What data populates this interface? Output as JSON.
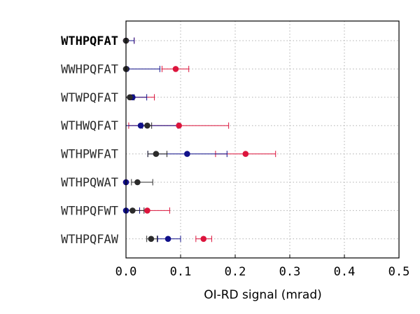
{
  "chart_data": {
    "type": "scatter",
    "xlabel": "OI-RD signal (mrad)",
    "xlim": [
      0.0,
      0.5
    ],
    "xticks": [
      "0.0",
      "0.1",
      "0.2",
      "0.3",
      "0.4",
      "0.5"
    ],
    "grid": true,
    "highlight_category": "WTHPQFAT",
    "categories": [
      "WTHPQFAT",
      "WWHPQFAT",
      "WTWPQFAT",
      "WTHWQFAT",
      "WTHPWFAT",
      "WTHPQWAT",
      "WTHPQFWT",
      "WTHPQFAW"
    ],
    "series": [
      {
        "color": "#dc143c",
        "points": [
          {
            "value": 0.0,
            "low": 0.0,
            "high": 0.015
          },
          {
            "value": 0.091,
            "low": 0.066,
            "high": 0.115
          },
          {
            "value": 0.008,
            "low": 0.0,
            "high": 0.052
          },
          {
            "value": 0.097,
            "low": 0.005,
            "high": 0.188
          },
          {
            "value": 0.219,
            "low": 0.164,
            "high": 0.274
          },
          {
            "value": 0.0,
            "low": 0.0,
            "high": 0.0
          },
          {
            "value": 0.039,
            "low": 0.0,
            "high": 0.08
          },
          {
            "value": 0.142,
            "low": 0.128,
            "high": 0.157
          }
        ]
      },
      {
        "color": "#10108a",
        "points": [
          {
            "value": 0.0,
            "low": 0.0,
            "high": 0.015
          },
          {
            "value": 0.001,
            "low": 0.0,
            "high": 0.062
          },
          {
            "value": 0.012,
            "low": 0.0,
            "high": 0.038
          },
          {
            "value": 0.027,
            "low": 0.0,
            "high": 0.095
          },
          {
            "value": 0.112,
            "low": 0.04,
            "high": 0.185
          },
          {
            "value": 0.0,
            "low": 0.0,
            "high": 0.0
          },
          {
            "value": 0.0,
            "low": 0.0,
            "high": 0.025
          },
          {
            "value": 0.077,
            "low": 0.058,
            "high": 0.1
          }
        ]
      },
      {
        "color": "#2b2b2b",
        "points": [
          {
            "value": 0.0,
            "low": 0.0,
            "high": 0.0
          },
          {
            "value": 0.0,
            "low": 0.0,
            "high": 0.0
          },
          {
            "value": 0.007,
            "low": 0.0,
            "high": 0.015
          },
          {
            "value": 0.039,
            "low": 0.03,
            "high": 0.047
          },
          {
            "value": 0.055,
            "low": 0.04,
            "high": 0.075
          },
          {
            "value": 0.021,
            "low": 0.01,
            "high": 0.049
          },
          {
            "value": 0.012,
            "low": 0.0,
            "high": 0.033
          },
          {
            "value": 0.046,
            "low": 0.038,
            "high": 0.057
          }
        ]
      }
    ]
  }
}
